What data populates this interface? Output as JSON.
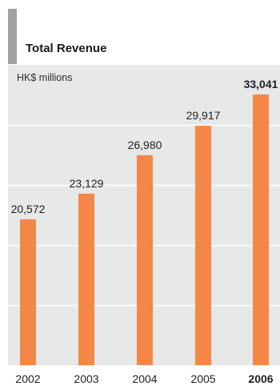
{
  "chart_data": {
    "type": "bar",
    "title": "Total Revenue",
    "ylabel": "HK$ millions",
    "xlabel": "",
    "categories": [
      "2002",
      "2003",
      "2004",
      "2005",
      "2006"
    ],
    "values": [
      20572,
      23129,
      26980,
      29917,
      33041
    ],
    "value_labels": [
      "20,572",
      "23,129",
      "26,980",
      "29,917",
      "33,041"
    ],
    "highlight_index": 4,
    "ylim": [
      6000,
      36000
    ],
    "grid": true,
    "legend": "none"
  },
  "colors": {
    "bar": "#f48747",
    "panel": "#e7e8e8",
    "accent": "#9fa1a3",
    "gridline": "#ffffff",
    "text": "#1f1f1f"
  }
}
